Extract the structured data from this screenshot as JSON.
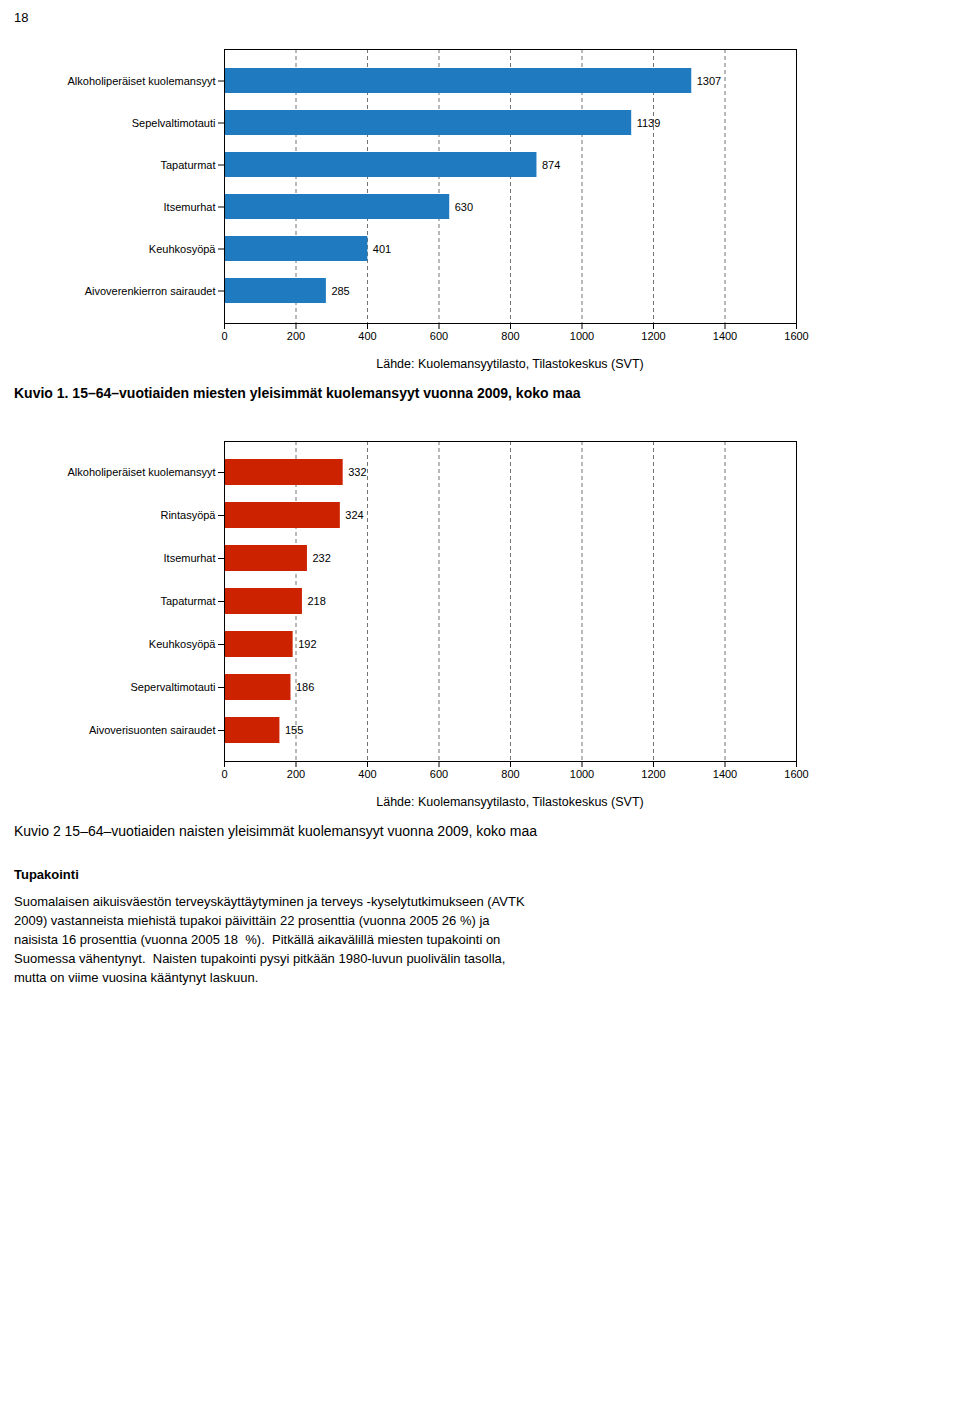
{
  "chart_data": [
    {
      "type": "bar",
      "orientation": "horizontal",
      "title": "Kuvio 1. 15–64–vuotiaiden miesten yleisimmät kuolemansyyt vuonna 2009, koko maa",
      "annotations": [
        "Lähde: Kuolemansyytilasto, Tilastokeskus (SVT)"
      ],
      "categories": [
        "Alkoholiperäiset kuolemansyyt",
        "Sepelvaltimotauti",
        "Tapaturmat",
        "Itsemurhat",
        "Keuhkosyöpä",
        "Aivoverenkierron sairaudet"
      ],
      "values": [
        1307,
        1139,
        874,
        630,
        401,
        285
      ],
      "color": "#1F7ABF",
      "xlim": [
        0,
        1600
      ],
      "xticks": [
        0,
        200,
        400,
        600,
        800,
        1000,
        1200,
        1400,
        1600
      ],
      "grid": true,
      "data_labels": true
    },
    {
      "type": "bar",
      "orientation": "horizontal",
      "title": "Kuvio 2 15–64–vuotiaiden naisten yleisimmät kuolemansyyt vuonna 2009, koko maa",
      "annotations": [
        "Lähde: Kuolemansyytilasto, Tilastokeskus (SVT)"
      ],
      "categories": [
        "Alkoholiperäiset kuolemansyyt",
        "Rintasyöpä",
        "Itsemurhat",
        "Tapaturmat",
        "Keuhkosyöpä",
        "Sepervaltimotauti",
        "Aivoverisuonten sairaudet"
      ],
      "values": [
        332,
        324,
        232,
        218,
        192,
        186,
        155
      ],
      "color": "#CC2200",
      "xlim": [
        0,
        1600
      ],
      "xticks": [
        0,
        200,
        400,
        600,
        800,
        1000,
        1200,
        1400,
        1600
      ],
      "grid": true,
      "data_labels": true
    }
  ],
  "annotations": [
    "18",
    "Tupakointi",
    "Suomalaisen aikuisväestön terveyskäyttäytyminen ja terveys -kyselytutkimukseen (AVTK",
    "2009) vastanneista miehistä tupakoi päivittäin 22 prosenttia (vuonna 2005 26 %) ja",
    "naisista 16 prosenttia (vuonna 2005 18  %).  Pitkällä aikavälillä miesten tupakointi on",
    "Suomessa vähentynyt.  Naisten tupakointi pysyi pitkään 1980-luvun puolivälin tasolla,",
    "mutta on viime vuosina kääntynyt laskuun."
  ]
}
